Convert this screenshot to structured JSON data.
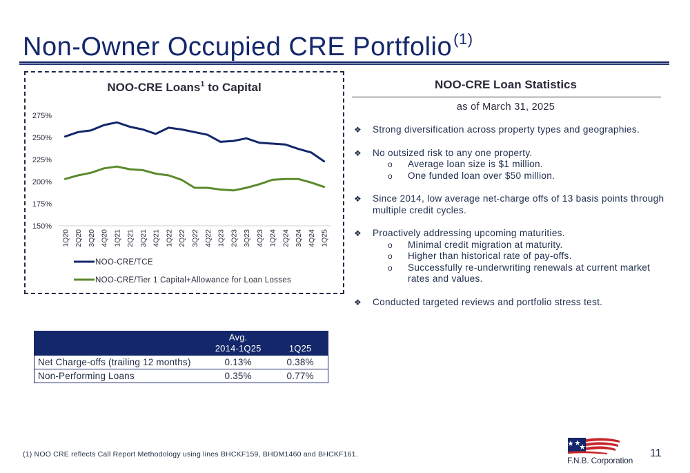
{
  "page": {
    "title": "Non-Owner Occupied CRE Portfolio",
    "title_sup": "(1)",
    "page_number": "11",
    "footnote": "(1) NOO CRE reflects Call Report Methodology using lines BHCKF159, BHDM1460 and BHCKF161.",
    "logo_text": "F.N.B. Corporation"
  },
  "chart_title": {
    "main": "NOO-CRE Loans",
    "sup": "1",
    "rest": " to Capital"
  },
  "chart_data": {
    "type": "line",
    "title": "NOO-CRE Loans1 to Capital",
    "categories": [
      "1Q20",
      "2Q20",
      "3Q20",
      "4Q20",
      "1Q21",
      "2Q21",
      "3Q21",
      "4Q21",
      "1Q22",
      "2Q22",
      "3Q22",
      "4Q22",
      "1Q23",
      "2Q23",
      "3Q23",
      "4Q23",
      "1Q24",
      "2Q24",
      "3Q24",
      "4Q24",
      "1Q25"
    ],
    "ylim": [
      150,
      275
    ],
    "yticks": [
      150,
      175,
      200,
      225,
      250,
      275
    ],
    "ytick_labels": [
      "150%",
      "175%",
      "200%",
      "225%",
      "250%",
      "275%"
    ],
    "grid": false,
    "legend_position": "bottom",
    "series": [
      {
        "name": "NOO-CRE/TCE",
        "color": "#14276b",
        "values": [
          251,
          256,
          258,
          264,
          267,
          262,
          259,
          254,
          261,
          259,
          256,
          253,
          245,
          246,
          249,
          244,
          243,
          242,
          237,
          233,
          223
        ]
      },
      {
        "name": "NOO-CRE/Tier 1 Capital+Allowance for Loan Losses",
        "color": "#5b8a2e",
        "values": [
          203,
          207,
          210,
          215,
          217,
          214,
          213,
          209,
          207,
          202,
          193,
          193,
          191,
          190,
          193,
          197,
          202,
          203,
          203,
          199,
          194
        ]
      }
    ]
  },
  "stats": {
    "title": "NOO-CRE Loan Statistics",
    "subtitle": "as of March 31, 2025",
    "bullets": [
      {
        "text": "Strong diversification across property types and geographies.",
        "subs": []
      },
      {
        "text": "No outsized risk to any one property.",
        "subs": [
          "Average loan size is $1 million.",
          "One funded loan over $50 million."
        ]
      },
      {
        "text": "Since 2014, low average net-charge offs of 13 basis points through multiple credit cycles.",
        "subs": []
      },
      {
        "text": "Proactively addressing upcoming maturities.",
        "subs": [
          "Minimal credit migration at maturity.",
          "Higher than historical rate of pay-offs.",
          "Successfully re-underwriting renewals at current market rates and values."
        ]
      },
      {
        "text": "Conducted targeted reviews and portfolio stress test.",
        "subs": []
      }
    ]
  },
  "table": {
    "header": [
      "",
      "Avg.\n2014-1Q25",
      "1Q25"
    ],
    "header_avg_line1": "Avg.",
    "header_avg_line2": "2014-1Q25",
    "header_q": "1Q25",
    "rows": [
      {
        "label": "Net Charge-offs (trailing 12 months)",
        "avg": "0.13%",
        "q": "0.38%"
      },
      {
        "label": "Non-Performing Loans",
        "avg": "0.35%",
        "q": "0.77%"
      }
    ]
  },
  "colors": {
    "brand_navy": "#14276b",
    "series_green": "#5b8a2e",
    "logo_red": "#c8262c"
  }
}
